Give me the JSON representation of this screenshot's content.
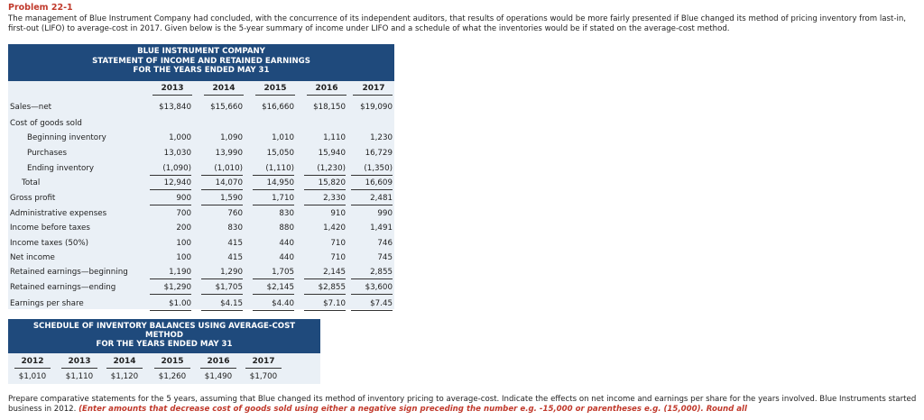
{
  "problem_title": "Problem 22-1",
  "intro_text": "The management of Blue Instrument Company had concluded, with the concurrence of its independent auditors, that results of operations would be more fairly presented if Blue changed its method of pricing inventory from last-in, first-out (LIFO) to average-cost in 2017. Given below is the 5-year summary of income under LIFO and a schedule of what the inventories would be if stated on the average-cost method.",
  "statement": {
    "header": [
      "BLUE INSTRUMENT COMPANY",
      "STATEMENT OF INCOME AND RETAINED EARNINGS",
      "FOR THE YEARS ENDED MAY 31"
    ],
    "years": [
      "2013",
      "2014",
      "2015",
      "2016",
      "2017"
    ],
    "rows": [
      {
        "label": "Sales—net",
        "values": [
          "$13,840",
          "$15,660",
          "$16,660",
          "$18,150",
          "$19,090"
        ]
      },
      {
        "label": "Cost of goods sold",
        "values": [
          "",
          "",
          "",
          "",
          ""
        ]
      },
      {
        "label": "Beginning inventory",
        "values": [
          "1,000",
          "1,090",
          "1,010",
          "1,110",
          "1,230"
        ]
      },
      {
        "label": "Purchases",
        "values": [
          "13,030",
          "13,990",
          "15,050",
          "15,940",
          "16,729"
        ]
      },
      {
        "label": "Ending inventory",
        "values": [
          "(1,090)",
          "(1,010)",
          "(1,110)",
          "(1,230)",
          "(1,350)"
        ]
      },
      {
        "label": "Total",
        "values": [
          "12,940",
          "14,070",
          "14,950",
          "15,820",
          "16,609"
        ]
      },
      {
        "label": "Gross profit",
        "values": [
          "900",
          "1,590",
          "1,710",
          "2,330",
          "2,481"
        ]
      },
      {
        "label": "Administrative expenses",
        "values": [
          "700",
          "760",
          "830",
          "910",
          "990"
        ]
      },
      {
        "label": "Income before taxes",
        "values": [
          "200",
          "830",
          "880",
          "1,420",
          "1,491"
        ]
      },
      {
        "label": "Income taxes (50%)",
        "values": [
          "100",
          "415",
          "440",
          "710",
          "746"
        ]
      },
      {
        "label": "Net income",
        "values": [
          "100",
          "415",
          "440",
          "710",
          "745"
        ]
      },
      {
        "label": "Retained earnings—beginning",
        "values": [
          "1,190",
          "1,290",
          "1,705",
          "2,145",
          "2,855"
        ]
      },
      {
        "label": "Retained earnings—ending",
        "values": [
          "$1,290",
          "$1,705",
          "$2,145",
          "$2,855",
          "$3,600"
        ]
      },
      {
        "label": "Earnings per share",
        "values": [
          "$1.00",
          "$4.15",
          "$4.40",
          "$7.10",
          "$7.45"
        ]
      }
    ]
  },
  "schedule": {
    "header": [
      "SCHEDULE OF INVENTORY BALANCES USING AVERAGE-COST",
      "METHOD",
      "FOR THE YEARS ENDED MAY 31"
    ],
    "years": [
      "2012",
      "2013",
      "2014",
      "2015",
      "2016",
      "2017"
    ],
    "values": [
      "$1,010",
      "$1,110",
      "$1,120",
      "$1,260",
      "$1,490",
      "$1,700"
    ]
  },
  "prepare": {
    "text": "Prepare comparative statements for the 5 years, assuming that Blue changed its method of inventory pricing to average-cost. Indicate the effects on net income and earnings per share for the years involved. Blue Instruments started business in 2012.",
    "emphasis": "(Enter amounts that decrease cost of goods sold using either a negative sign preceding the number e.g. -15,000 or parentheses e.g. (15,000). Round all"
  }
}
